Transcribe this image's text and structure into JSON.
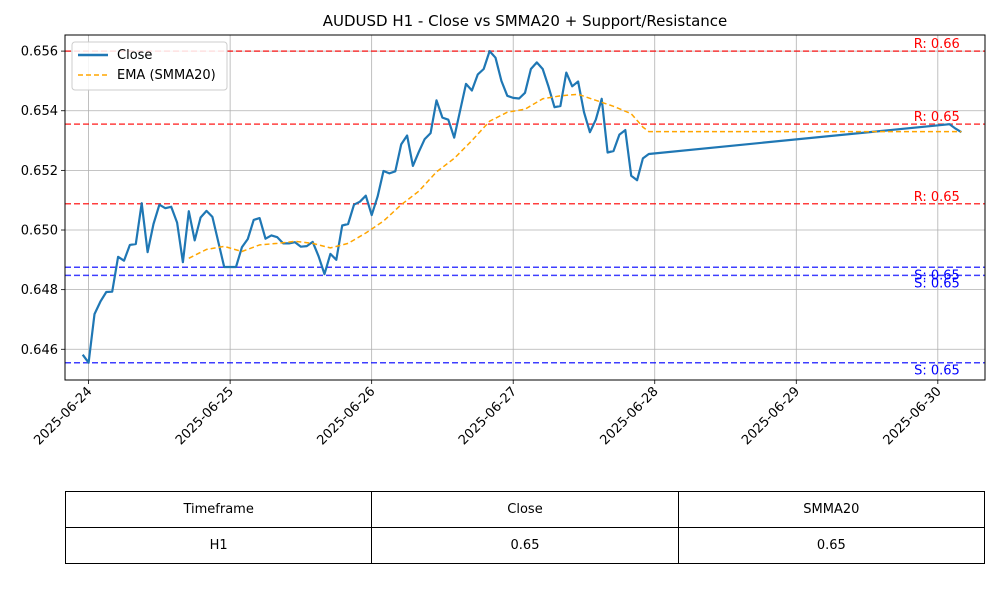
{
  "chart_data": {
    "type": "line",
    "title": "AUDUSD H1 - Close vs SMMA20 + Support/Resistance",
    "xlabel": "",
    "ylabel": "",
    "xlim": [
      "2025-06-23 20:00",
      "2025-06-30 08:00"
    ],
    "ylim": [
      0.64497,
      0.65654
    ],
    "grid": true,
    "legend_position": "upper-left",
    "x_ticks": [
      "2025-06-24",
      "2025-06-25",
      "2025-06-26",
      "2025-06-27",
      "2025-06-28",
      "2025-06-29",
      "2025-06-30"
    ],
    "y_ticks": [
      "0.646",
      "0.648",
      "0.650",
      "0.652",
      "0.654",
      "0.656"
    ],
    "series": [
      {
        "name": "Close",
        "color": "#1f77b4",
        "style": "solid",
        "points": [
          [
            "2025-06-23 23:00",
            0.64582
          ],
          [
            "2025-06-24 00:00",
            0.64555
          ],
          [
            "2025-06-24 01:00",
            0.64718
          ],
          [
            "2025-06-24 02:00",
            0.6476
          ],
          [
            "2025-06-24 03:00",
            0.64792
          ],
          [
            "2025-06-24 04:00",
            0.64793
          ],
          [
            "2025-06-24 05:00",
            0.6491
          ],
          [
            "2025-06-24 06:00",
            0.64897
          ],
          [
            "2025-06-24 07:00",
            0.6495
          ],
          [
            "2025-06-24 08:00",
            0.64953
          ],
          [
            "2025-06-24 09:00",
            0.6509
          ],
          [
            "2025-06-24 10:00",
            0.64926
          ],
          [
            "2025-06-24 11:00",
            0.6502
          ],
          [
            "2025-06-24 12:00",
            0.65085
          ],
          [
            "2025-06-24 13:00",
            0.65073
          ],
          [
            "2025-06-24 14:00",
            0.65078
          ],
          [
            "2025-06-24 15:00",
            0.65025
          ],
          [
            "2025-06-24 16:00",
            0.64892
          ],
          [
            "2025-06-24 17:00",
            0.65063
          ],
          [
            "2025-06-24 18:00",
            0.64965
          ],
          [
            "2025-06-24 19:00",
            0.65042
          ],
          [
            "2025-06-24 20:00",
            0.65064
          ],
          [
            "2025-06-24 21:00",
            0.65044
          ],
          [
            "2025-06-24 22:00",
            0.6496
          ],
          [
            "2025-06-24 23:00",
            0.64876
          ],
          [
            "2025-06-25 00:00",
            0.64876
          ],
          [
            "2025-06-25 01:00",
            0.64876
          ],
          [
            "2025-06-25 02:00",
            0.64942
          ],
          [
            "2025-06-25 03:00",
            0.6497
          ],
          [
            "2025-06-25 04:00",
            0.65034
          ],
          [
            "2025-06-25 05:00",
            0.6504
          ],
          [
            "2025-06-25 06:00",
            0.64971
          ],
          [
            "2025-06-25 07:00",
            0.64982
          ],
          [
            "2025-06-25 08:00",
            0.64976
          ],
          [
            "2025-06-25 09:00",
            0.64955
          ],
          [
            "2025-06-25 10:00",
            0.64955
          ],
          [
            "2025-06-25 11:00",
            0.64959
          ],
          [
            "2025-06-25 12:00",
            0.64944
          ],
          [
            "2025-06-25 13:00",
            0.64946
          ],
          [
            "2025-06-25 14:00",
            0.6496
          ],
          [
            "2025-06-25 15:00",
            0.64912
          ],
          [
            "2025-06-25 16:00",
            0.64852
          ],
          [
            "2025-06-25 17:00",
            0.6492
          ],
          [
            "2025-06-25 18:00",
            0.649
          ],
          [
            "2025-06-25 19:00",
            0.65015
          ],
          [
            "2025-06-25 20:00",
            0.6502
          ],
          [
            "2025-06-25 21:00",
            0.65085
          ],
          [
            "2025-06-25 22:00",
            0.65095
          ],
          [
            "2025-06-25 23:00",
            0.65115
          ],
          [
            "2025-06-26 00:00",
            0.6505
          ],
          [
            "2025-06-26 01:00",
            0.65112
          ],
          [
            "2025-06-26 02:00",
            0.65198
          ],
          [
            "2025-06-26 03:00",
            0.6519
          ],
          [
            "2025-06-26 04:00",
            0.65197
          ],
          [
            "2025-06-26 05:00",
            0.65287
          ],
          [
            "2025-06-26 06:00",
            0.65317
          ],
          [
            "2025-06-26 07:00",
            0.65215
          ],
          [
            "2025-06-26 08:00",
            0.65262
          ],
          [
            "2025-06-26 09:00",
            0.65305
          ],
          [
            "2025-06-26 10:00",
            0.65325
          ],
          [
            "2025-06-26 11:00",
            0.65435
          ],
          [
            "2025-06-26 12:00",
            0.65377
          ],
          [
            "2025-06-26 13:00",
            0.6537
          ],
          [
            "2025-06-26 14:00",
            0.6531
          ],
          [
            "2025-06-26 15:00",
            0.654
          ],
          [
            "2025-06-26 16:00",
            0.6549
          ],
          [
            "2025-06-26 17:00",
            0.65468
          ],
          [
            "2025-06-26 18:00",
            0.65522
          ],
          [
            "2025-06-26 19:00",
            0.6554
          ],
          [
            "2025-06-26 20:00",
            0.656
          ],
          [
            "2025-06-26 21:00",
            0.65578
          ],
          [
            "2025-06-26 22:00",
            0.655
          ],
          [
            "2025-06-26 23:00",
            0.6545
          ],
          [
            "2025-06-27 00:00",
            0.65443
          ],
          [
            "2025-06-27 01:00",
            0.65441
          ],
          [
            "2025-06-27 02:00",
            0.6546
          ],
          [
            "2025-06-27 03:00",
            0.6554
          ],
          [
            "2025-06-27 04:00",
            0.65562
          ],
          [
            "2025-06-27 05:00",
            0.6554
          ],
          [
            "2025-06-27 06:00",
            0.6548
          ],
          [
            "2025-06-27 07:00",
            0.65412
          ],
          [
            "2025-06-27 08:00",
            0.65416
          ],
          [
            "2025-06-27 09:00",
            0.65528
          ],
          [
            "2025-06-27 10:00",
            0.65482
          ],
          [
            "2025-06-27 11:00",
            0.65498
          ],
          [
            "2025-06-27 12:00",
            0.65395
          ],
          [
            "2025-06-27 13:00",
            0.65328
          ],
          [
            "2025-06-27 14:00",
            0.6537
          ],
          [
            "2025-06-27 15:00",
            0.6544
          ],
          [
            "2025-06-27 16:00",
            0.6526
          ],
          [
            "2025-06-27 17:00",
            0.65265
          ],
          [
            "2025-06-27 18:00",
            0.6532
          ],
          [
            "2025-06-27 19:00",
            0.65335
          ],
          [
            "2025-06-27 20:00",
            0.65182
          ],
          [
            "2025-06-27 21:00",
            0.65167
          ],
          [
            "2025-06-27 22:00",
            0.6524
          ],
          [
            "2025-06-27 23:00",
            0.65255
          ],
          [
            "2025-06-30 02:00",
            0.65355
          ],
          [
            "2025-06-30 03:00",
            0.6534
          ],
          [
            "2025-06-30 04:00",
            0.65328
          ]
        ]
      },
      {
        "name": "EMA (SMMA20)",
        "color": "#ffa500",
        "style": "dashed",
        "points": [
          [
            "2025-06-24 17:00",
            0.64905
          ],
          [
            "2025-06-24 20:00",
            0.64935
          ],
          [
            "2025-06-24 23:00",
            0.64945
          ],
          [
            "2025-06-25 02:00",
            0.64928
          ],
          [
            "2025-06-25 05:00",
            0.6495
          ],
          [
            "2025-06-25 08:00",
            0.64955
          ],
          [
            "2025-06-25 11:00",
            0.64962
          ],
          [
            "2025-06-25 14:00",
            0.64955
          ],
          [
            "2025-06-25 17:00",
            0.6494
          ],
          [
            "2025-06-25 20:00",
            0.64955
          ],
          [
            "2025-06-25 23:00",
            0.6499
          ],
          [
            "2025-06-26 02:00",
            0.6503
          ],
          [
            "2025-06-26 05:00",
            0.65085
          ],
          [
            "2025-06-26 08:00",
            0.6513
          ],
          [
            "2025-06-26 11:00",
            0.65195
          ],
          [
            "2025-06-26 14:00",
            0.6524
          ],
          [
            "2025-06-26 17:00",
            0.653
          ],
          [
            "2025-06-26 20:00",
            0.65365
          ],
          [
            "2025-06-26 23:00",
            0.65395
          ],
          [
            "2025-06-27 02:00",
            0.65405
          ],
          [
            "2025-06-27 05:00",
            0.6544
          ],
          [
            "2025-06-27 08:00",
            0.6545
          ],
          [
            "2025-06-27 11:00",
            0.65455
          ],
          [
            "2025-06-27 14:00",
            0.65435
          ],
          [
            "2025-06-27 17:00",
            0.65415
          ],
          [
            "2025-06-27 20:00",
            0.6539
          ],
          [
            "2025-06-27 22:00",
            0.65345
          ],
          [
            "2025-06-27 23:00",
            0.6533
          ],
          [
            "2025-06-30 01:00",
            0.6533
          ],
          [
            "2025-06-30 04:00",
            0.6533
          ]
        ]
      }
    ],
    "horizontal_lines": [
      {
        "kind": "resistance",
        "value": 0.656,
        "label": "R: 0.66",
        "color": "#ff0000"
      },
      {
        "kind": "resistance",
        "value": 0.65355,
        "label": "R: 0.65",
        "color": "#ff0000"
      },
      {
        "kind": "resistance",
        "value": 0.65088,
        "label": "R: 0.65",
        "color": "#ff0000"
      },
      {
        "kind": "support",
        "value": 0.64875,
        "label": "S: 0.65",
        "color": "#0000ff"
      },
      {
        "kind": "support",
        "value": 0.64848,
        "label": "S: 0.65",
        "color": "#0000ff"
      },
      {
        "kind": "support",
        "value": 0.64555,
        "label": "S: 0.65",
        "color": "#0000ff"
      }
    ]
  },
  "table": {
    "headers": [
      "Timeframe",
      "Close",
      "SMMA20"
    ],
    "rows": [
      [
        "H1",
        "0.65",
        "0.65"
      ]
    ]
  }
}
